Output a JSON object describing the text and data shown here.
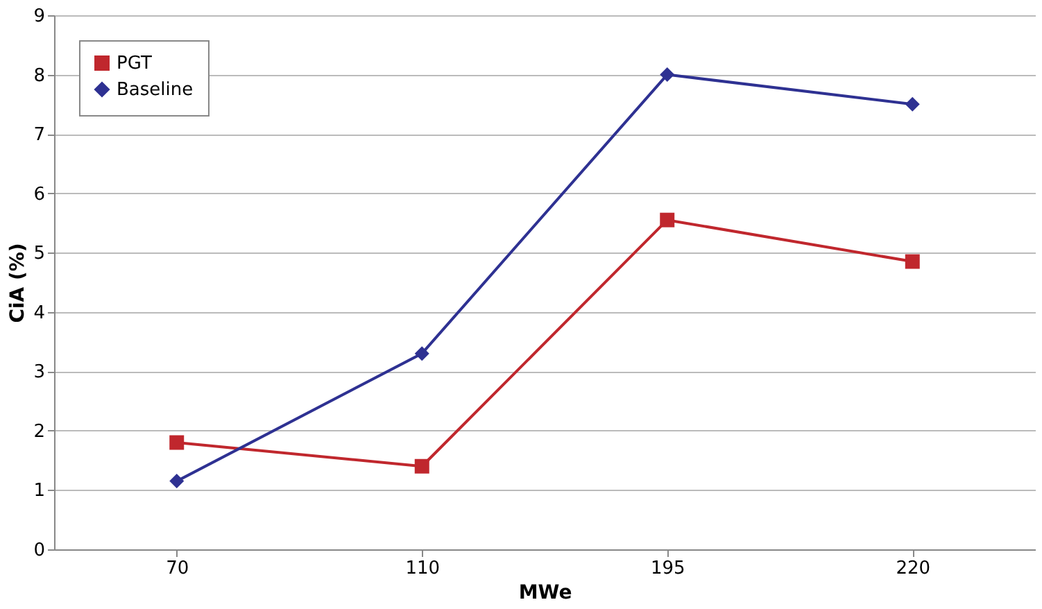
{
  "chart_data": {
    "type": "line",
    "xlabel": "MWe",
    "ylabel": "CiA (%)",
    "categories": [
      "70",
      "110",
      "195",
      "220"
    ],
    "series": [
      {
        "name": "PGT",
        "color": "#c0272d",
        "marker": "square",
        "values": [
          1.8,
          1.4,
          5.55,
          4.85
        ]
      },
      {
        "name": "Baseline",
        "color": "#2e3192",
        "marker": "diamond",
        "values": [
          1.15,
          3.3,
          8,
          7.5
        ]
      }
    ],
    "ylim": [
      0,
      9
    ],
    "yticks": [
      0,
      1,
      2,
      3,
      4,
      5,
      6,
      7,
      8,
      9
    ],
    "grid": "y",
    "legend": "top left",
    "line_style": "solid"
  }
}
